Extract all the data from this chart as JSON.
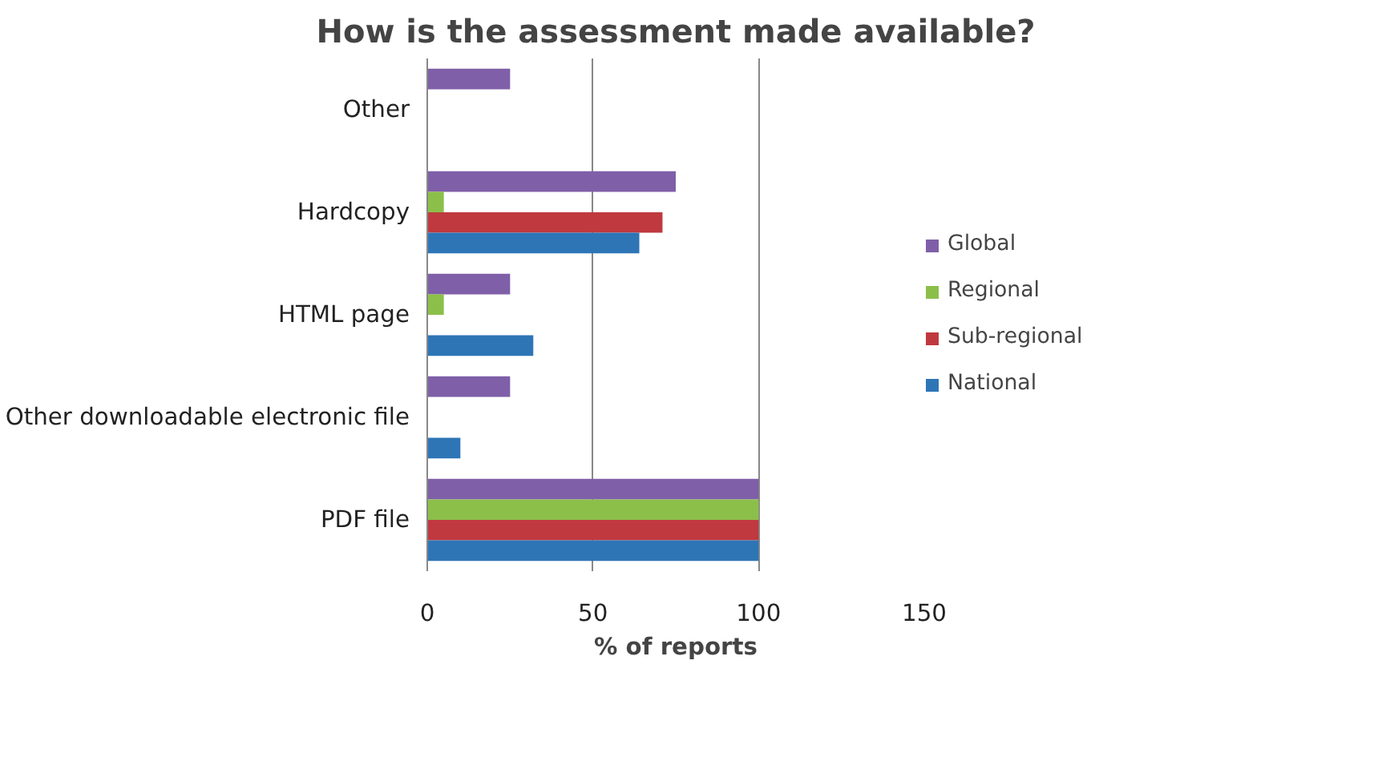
{
  "chart_data": {
    "type": "bar",
    "orientation": "horizontal",
    "title": "How is the assessment made available?",
    "xlabel": "% of reports",
    "categories": [
      "Other",
      "Hardcopy",
      "HTML page",
      "Other downloadable electronic file",
      "PDF file"
    ],
    "series": [
      {
        "name": "Global",
        "color": "#7f5fa8",
        "values": [
          25,
          75,
          25,
          25,
          100
        ]
      },
      {
        "name": "Regional",
        "color": "#8cbf4a",
        "values": [
          0,
          5,
          5,
          0,
          100
        ]
      },
      {
        "name": "Sub-regional",
        "color": "#c0393f",
        "values": [
          0,
          71,
          0,
          0,
          100
        ]
      },
      {
        "name": "National",
        "color": "#2e75b6",
        "values": [
          0,
          64,
          32,
          10,
          100
        ]
      }
    ],
    "xlim": [
      0,
      150
    ],
    "xticks": [
      0,
      50,
      100,
      150
    ],
    "grid": "x",
    "legend": "right"
  }
}
